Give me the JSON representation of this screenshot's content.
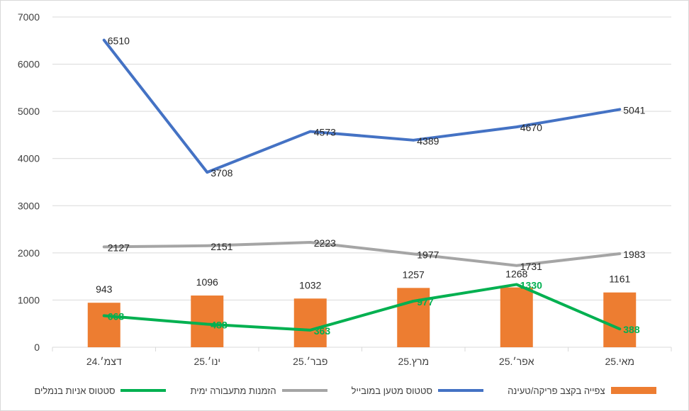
{
  "chart_data": {
    "type": "bar",
    "categories": [
      "דצמ׳.24",
      "ינו׳.25",
      "פבר׳.25",
      "מרץ.25",
      "אפר׳.25",
      "מאי.25"
    ],
    "ylim": [
      0,
      7000
    ],
    "yticks": [
      "0",
      "1000",
      "2000",
      "3000",
      "4000",
      "5000",
      "6000",
      "7000"
    ],
    "grid": true,
    "legend_position": "bottom",
    "series": [
      {
        "name": "צפייה בקצב פריקה/טעינה",
        "kind": "bar",
        "color": "#ed7d31",
        "values": [
          943,
          1096,
          1032,
          1257,
          1268,
          1161
        ]
      },
      {
        "name": "סטטוס מטען במובייל",
        "kind": "line",
        "color": "#4472c4",
        "values": [
          6510,
          3708,
          4573,
          4389,
          4670,
          5041
        ]
      },
      {
        "name": "הזמנות מתעבורה ימית",
        "kind": "line",
        "color": "#a5a5a5",
        "values": [
          2127,
          2151,
          2223,
          1977,
          1731,
          1983
        ]
      },
      {
        "name": "סטטוס אניות בנמלים",
        "kind": "line",
        "color": "#00b050",
        "values": [
          668,
          488,
          363,
          977,
          1330,
          388
        ]
      }
    ]
  }
}
